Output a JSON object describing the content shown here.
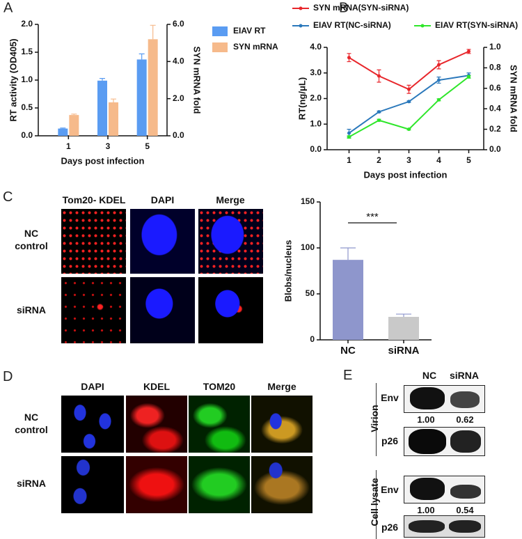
{
  "chart_data": [
    {
      "type": "bar",
      "panel": "A",
      "xlabel": "Days post infection",
      "ylabel": "RT activity (OD405)",
      "y2label": "SYN mRNA fold",
      "categories": [
        "1",
        "3",
        "5"
      ],
      "series": [
        {
          "name": "EIAV RT",
          "color": "#5a9cf2",
          "values": [
            0.13,
            0.99,
            1.37
          ],
          "errors": [
            0.01,
            0.04,
            0.1
          ]
        },
        {
          "name": "SYN mRNA",
          "color": "#f6ba8b",
          "axis": "y2",
          "values": [
            1.12,
            1.8,
            5.2
          ],
          "errors": [
            0.05,
            0.18,
            0.75
          ]
        }
      ],
      "ylim": [
        0,
        2
      ],
      "yticks": [
        {
          "value": 0,
          "label": "0.0"
        },
        {
          "value": 0.5,
          "label": "0.5"
        },
        {
          "value": 1,
          "label": "1.0"
        },
        {
          "value": 1.5,
          "label": "1.5"
        },
        {
          "value": 2,
          "label": "2.0"
        }
      ],
      "y2lim": [
        0,
        6
      ],
      "y2ticks": [
        {
          "value": 0,
          "label": "0.0"
        },
        {
          "value": 2,
          "label": "2.0"
        },
        {
          "value": 4,
          "label": "4.0"
        },
        {
          "value": 6,
          "label": "6.0"
        }
      ],
      "legend": "right"
    },
    {
      "type": "line",
      "panel": "B",
      "xlabel": "Days post infection",
      "ylabel": "RT(ng/μL)",
      "y2label": "SYN mRNA fold",
      "categories": [
        "1",
        "2",
        "3",
        "4",
        "5"
      ],
      "series": [
        {
          "name": "SYN mRNA(SYN-siRNA)",
          "color": "#e8262b",
          "axis": "y2",
          "values": [
            0.9,
            0.72,
            0.59,
            0.83,
            0.96
          ],
          "errors": [
            0.04,
            0.06,
            0.04,
            0.04,
            0.02
          ]
        },
        {
          "name": "EIAV RT(NC-siRNA)",
          "color": "#2a78bb",
          "values": [
            0.65,
            1.48,
            1.88,
            2.72,
            2.9
          ],
          "errors": [
            0.15,
            0.03,
            0.03,
            0.12,
            0.1
          ]
        },
        {
          "name": "EIAV RT(SYN-siRNA)",
          "color": "#2ee62a",
          "values": [
            0.5,
            1.15,
            0.8,
            1.95,
            2.85
          ],
          "errors": [
            0.05,
            0.04,
            0.03,
            0.04,
            0.05
          ]
        }
      ],
      "ylim": [
        0,
        4
      ],
      "yticks": [
        {
          "value": 0,
          "label": "0.0"
        },
        {
          "value": 1,
          "label": "1.0"
        },
        {
          "value": 2,
          "label": "2.0"
        },
        {
          "value": 3,
          "label": "3.0"
        },
        {
          "value": 4,
          "label": "4.0"
        }
      ],
      "y2lim": [
        0,
        1
      ],
      "y2ticks": [
        {
          "value": 0,
          "label": "0.0"
        },
        0.2,
        0.4,
        0.6,
        0.8,
        {
          "value": 1,
          "label": "1.0"
        }
      ],
      "legend": "top"
    },
    {
      "type": "bar",
      "ylabel": "Blobs/nucleus",
      "categories": [
        "NC",
        "siRNA"
      ],
      "values": [
        87,
        25
      ],
      "errors": [
        13,
        3
      ],
      "colors": [
        "#8e96cc",
        "#c9c9c9"
      ],
      "ylim": [
        0,
        150
      ],
      "yticks": [
        0,
        50,
        100,
        150
      ],
      "annotation": "***"
    }
  ],
  "micrographs": [
    {
      "panel": "C",
      "columns": [
        "Tom20- KDEL",
        "DAPI",
        "Merge"
      ],
      "rows": [
        "NC\ncontrol",
        "siRNA"
      ]
    },
    {
      "panel": "D",
      "columns": [
        "DAPI",
        "KDEL",
        "TOM20",
        "Merge"
      ],
      "rows": [
        "NC\ncontrol",
        "siRNA"
      ]
    }
  ],
  "blots": {
    "panel": "E",
    "lanes": [
      "NC",
      "siRNA"
    ],
    "groups": [
      {
        "name": "Virion",
        "bands": [
          {
            "name": "Env",
            "ratios": [
              "1.00",
              "0.62"
            ]
          },
          {
            "name": "p26"
          }
        ]
      },
      {
        "name": "Cell lysate",
        "bands": [
          {
            "name": "Env",
            "ratios": [
              "1.00",
              "0.54"
            ]
          },
          {
            "name": "p26"
          }
        ]
      }
    ]
  }
}
